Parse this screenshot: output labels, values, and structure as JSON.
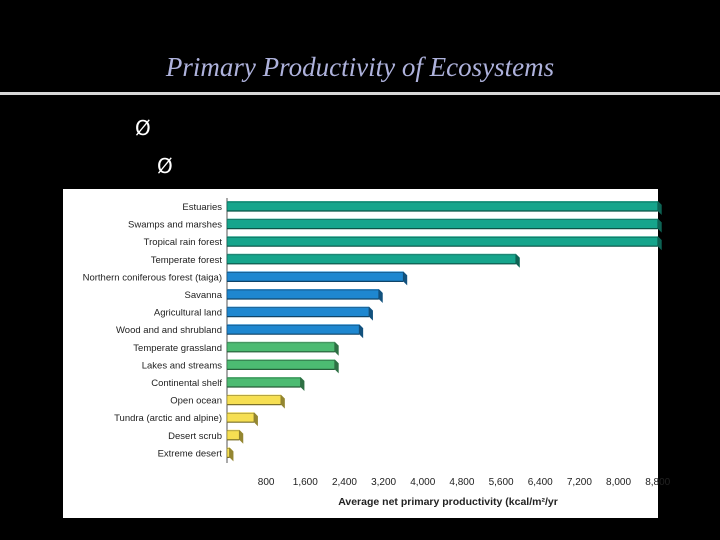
{
  "slide": {
    "title": "Primary Productivity of Ecosystems",
    "bullets": [
      "Ø",
      "Ø"
    ]
  },
  "chart_data": {
    "type": "bar",
    "orientation": "horizontal",
    "title": "",
    "xlabel": "Average net primary productivity (kcal/m²/yr",
    "ylabel": "",
    "xlim": [
      0,
      9000
    ],
    "x_ticks": [
      800,
      1600,
      2400,
      3200,
      4000,
      4800,
      5600,
      6400,
      7200,
      8000,
      8800
    ],
    "x_tick_labels": [
      "800",
      "1,600",
      "2,400",
      "3,200",
      "4,000",
      "4,800",
      "5,600",
      "6,400",
      "7,200",
      "8,000",
      "8,800"
    ],
    "grid": false,
    "legend": "none",
    "categories": [
      "Estuaries",
      "Swamps and marshes",
      "Tropical rain forest",
      "Temperate forest",
      "Northern coniferous forest (taiga)",
      "Savanna",
      "Agricultural land",
      "Wood and and shrubland",
      "Temperate grassland",
      "Lakes and streams",
      "Continental shelf",
      "Open ocean",
      "Tundra (arctic and alpine)",
      "Desert scrub",
      "Extreme desert"
    ],
    "values": [
      8800,
      8800,
      8800,
      5900,
      3600,
      3100,
      2900,
      2700,
      2200,
      2200,
      1500,
      1100,
      550,
      250,
      50
    ],
    "colors": [
      "#16a58c",
      "#16a58c",
      "#16a58c",
      "#16a58c",
      "#1e87d0",
      "#1e87d0",
      "#1e87d0",
      "#1e87d0",
      "#4cbb72",
      "#4cbb72",
      "#4cbb72",
      "#f6df52",
      "#f6df52",
      "#f6df52",
      "#f6df52"
    ]
  }
}
